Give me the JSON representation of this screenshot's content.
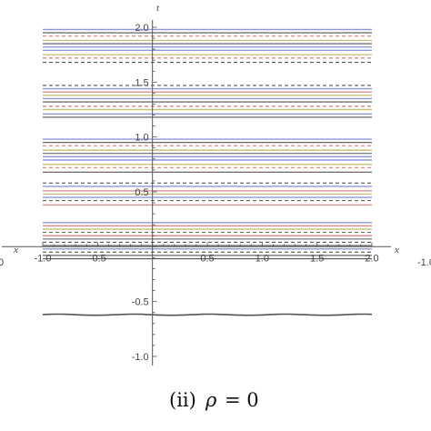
{
  "chart_data": {
    "type": "line",
    "title": "",
    "xlabel": "x",
    "ylabel": "t",
    "xlim": [
      -1.0,
      2.0
    ],
    "ylim": [
      -1.05,
      2.0
    ],
    "x_ticks": [
      "-1.0",
      "-0.5",
      "0.5",
      "1.0",
      "1.5",
      "2.0"
    ],
    "y_ticks": [
      "-1.0",
      "-0.5",
      "0.5",
      "1.0",
      "1.5",
      "2.0"
    ],
    "x_tick_values": [
      -1.0,
      -0.5,
      0.5,
      1.0,
      1.5,
      2.0
    ],
    "y_tick_values": [
      -1.0,
      -0.5,
      0.5,
      1.0,
      1.5,
      2.0
    ],
    "grid": false,
    "colors": {
      "blue": "#8f97dc",
      "red": "#dc8f8f",
      "olive": "#c8c07a",
      "dark": "#555555",
      "axis": "#555555"
    },
    "contour_bands": [
      {
        "t": [
          1.98,
          1.95,
          1.92,
          1.88,
          1.85,
          1.82,
          1.79,
          1.75,
          1.72,
          1.68
        ],
        "colors": [
          "blue",
          "dark",
          "red",
          "olive",
          "dark",
          "blue",
          "blue",
          "olive",
          "red",
          "dark"
        ],
        "dashed": [
          false,
          false,
          true,
          false,
          false,
          false,
          false,
          false,
          true,
          true
        ]
      },
      {
        "t": [
          1.47,
          1.44,
          1.41,
          1.38,
          1.35,
          1.32,
          1.28,
          1.25,
          1.21,
          1.18
        ],
        "colors": [
          "dark",
          "blue",
          "red",
          "olive",
          "blue",
          "dark",
          "red",
          "olive",
          "blue",
          "dark"
        ],
        "dashed": [
          true,
          false,
          false,
          false,
          false,
          false,
          true,
          false,
          false,
          false
        ]
      },
      {
        "t": [
          0.98,
          0.95,
          0.92,
          0.88,
          0.85,
          0.82,
          0.79,
          0.75,
          0.72,
          0.68
        ],
        "colors": [
          "blue",
          "dark",
          "red",
          "olive",
          "dark",
          "blue",
          "blue",
          "olive",
          "red",
          "dark"
        ],
        "dashed": [
          false,
          false,
          true,
          false,
          false,
          false,
          false,
          false,
          true,
          false
        ]
      },
      {
        "t": [
          0.58,
          0.55,
          0.51,
          0.48,
          0.45,
          0.42,
          0.38
        ],
        "colors": [
          "dark",
          "blue",
          "red",
          "olive",
          "blue",
          "dark",
          "red"
        ],
        "dashed": [
          true,
          false,
          false,
          false,
          false,
          true,
          false
        ]
      },
      {
        "t": [
          0.22,
          0.19,
          0.16,
          0.13,
          0.1,
          0.07,
          0.04
        ],
        "colors": [
          "blue",
          "red",
          "olive",
          "dark",
          "red",
          "dark",
          "dark"
        ],
        "dashed": [
          false,
          false,
          false,
          true,
          false,
          false,
          true
        ]
      },
      {
        "t": [
          0.01,
          -0.02,
          -0.05,
          -0.08,
          -0.11
        ],
        "colors": [
          "dark",
          "blue",
          "dark",
          "dark",
          "dark"
        ],
        "dashed": [
          false,
          false,
          true,
          false,
          false
        ]
      }
    ],
    "isolated_curve": {
      "t": -0.62,
      "color": "dark"
    }
  },
  "caption": {
    "prefix": "(ii)",
    "symbol": "ρ",
    "equation": "= 0"
  },
  "left_axis_fragment": {
    "x_label": "x",
    "tick": "0"
  },
  "right_axis_fragment": {
    "x_label": "x",
    "tick": "-1.0"
  }
}
